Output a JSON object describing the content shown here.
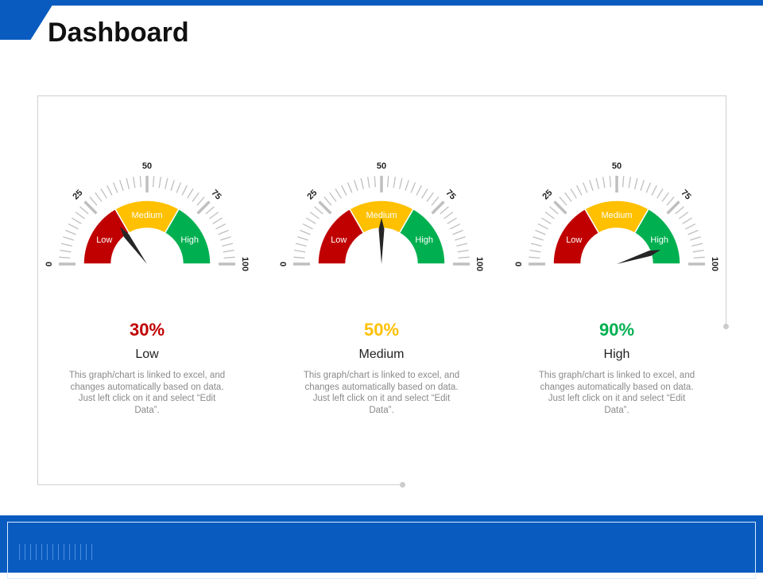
{
  "header": {
    "title": "Dashboard"
  },
  "colors": {
    "brand": "#0a5bbf",
    "low": "#c00000",
    "medium": "#ffc000",
    "high": "#00b050",
    "needle": "#262626",
    "tick": "#bfbfbf"
  },
  "chart_data": {
    "type": "gauge",
    "scale": {
      "min": 0,
      "max": 100,
      "major_ticks": [
        0,
        25,
        50,
        75,
        100
      ],
      "minor_step": 2.5
    },
    "bands": [
      {
        "label": "Low",
        "from": 0,
        "to": 33.3
      },
      {
        "label": "Medium",
        "from": 33.3,
        "to": 66.7
      },
      {
        "label": "High",
        "from": 66.7,
        "to": 100
      }
    ],
    "gauges": [
      {
        "value": 30,
        "percent_label": "30%",
        "level": "Low",
        "color": "#c00000"
      },
      {
        "value": 50,
        "percent_label": "50%",
        "level": "Medium",
        "color": "#ffc000"
      },
      {
        "value": 90,
        "percent_label": "90%",
        "level": "High",
        "color": "#00b050"
      }
    ]
  },
  "cards": [
    {
      "desc": "This graph/chart is linked to excel, and changes automatically based on data. Just left click on it and select “Edit Data”."
    },
    {
      "desc": "This graph/chart is linked to excel, and changes automatically based on data. Just left click on it and select “Edit Data”."
    },
    {
      "desc": "This graph/chart is linked to excel, and changes automatically based on data. Just left click on it and select “Edit Data”."
    }
  ]
}
